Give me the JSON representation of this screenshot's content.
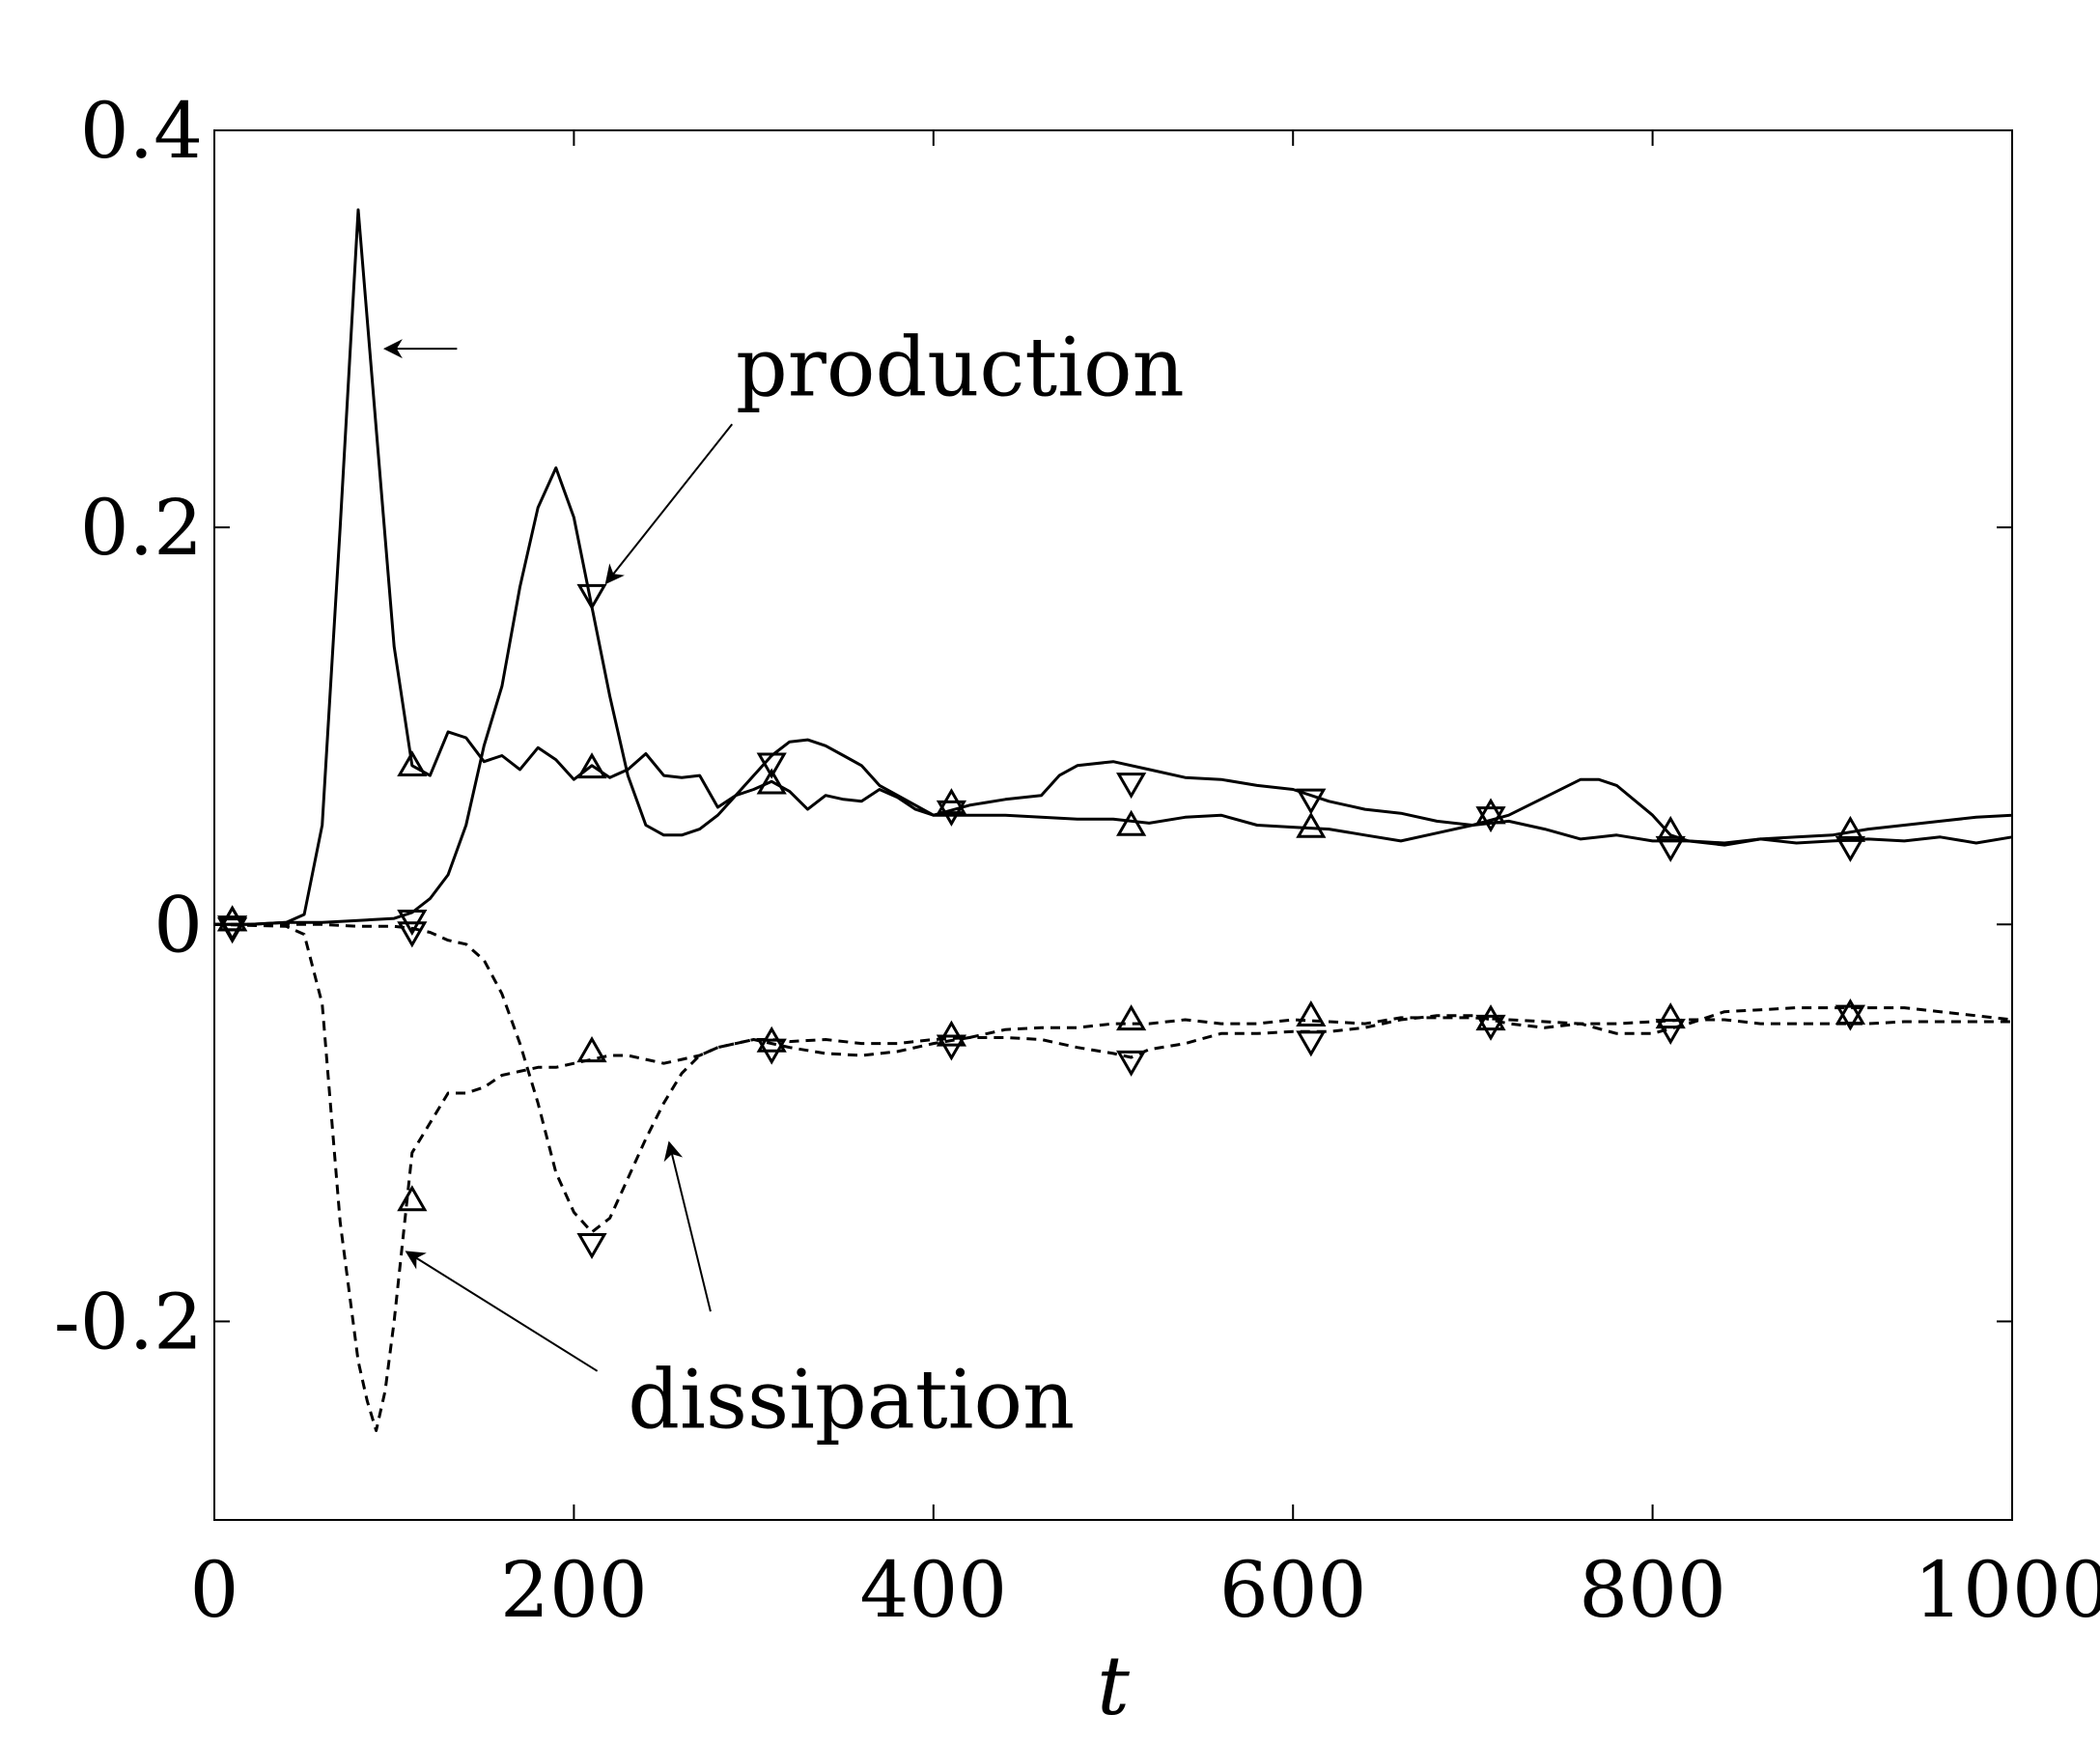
{
  "chart_data": {
    "type": "line",
    "title": "",
    "xlabel": "t",
    "ylabel": "",
    "xlim": [
      0,
      1000
    ],
    "ylim": [
      -0.3,
      0.4
    ],
    "xticks": [
      0,
      200,
      400,
      600,
      800,
      1000
    ],
    "xtick_labels": [
      "0",
      "200",
      "400",
      "600",
      "800",
      "1000"
    ],
    "yticks": [
      -0.2,
      0,
      0.2,
      0.4
    ],
    "ytick_labels": [
      "-0.2",
      "0",
      "0.2",
      "0.4"
    ],
    "grid": false,
    "legend": "none",
    "line_color": "#000000",
    "series": [
      {
        "group": "production",
        "line_style": "solid",
        "marker": "triangle-up",
        "x": [
          0,
          20,
          40,
          50,
          60,
          70,
          80,
          90,
          100,
          110,
          120,
          130,
          140,
          150,
          160,
          170,
          180,
          190,
          200,
          210,
          220,
          230,
          240,
          250,
          260,
          270,
          280,
          290,
          300,
          310,
          320,
          330,
          340,
          350,
          360,
          370,
          380,
          390,
          400,
          420,
          440,
          460,
          480,
          500,
          520,
          540,
          560,
          580,
          600,
          620,
          640,
          660,
          680,
          700,
          720,
          740,
          760,
          780,
          800,
          820,
          840,
          860,
          880,
          900,
          920,
          940,
          960,
          980,
          1000
        ],
        "y": [
          0,
          0,
          0.001,
          0.005,
          0.05,
          0.2,
          0.36,
          0.25,
          0.14,
          0.08,
          0.075,
          0.097,
          0.094,
          0.082,
          0.085,
          0.078,
          0.089,
          0.083,
          0.073,
          0.08,
          0.074,
          0.078,
          0.086,
          0.075,
          0.074,
          0.075,
          0.059,
          0.065,
          0.068,
          0.072,
          0.067,
          0.058,
          0.065,
          0.063,
          0.062,
          0.068,
          0.064,
          0.058,
          0.055,
          0.055,
          0.055,
          0.054,
          0.053,
          0.053,
          0.051,
          0.054,
          0.055,
          0.05,
          0.049,
          0.048,
          0.045,
          0.042,
          0.046,
          0.05,
          0.052,
          0.048,
          0.043,
          0.045,
          0.042,
          0.042,
          0.041,
          0.043,
          0.041,
          0.042,
          0.043,
          0.042,
          0.044,
          0.041,
          0.044
        ],
        "marker_x": [
          10,
          110,
          210,
          310,
          410,
          510,
          610,
          710,
          810,
          910
        ],
        "marker_y": [
          0.001,
          0.079,
          0.078,
          0.07,
          0.06,
          0.049,
          0.048,
          0.055,
          0.046,
          0.046
        ]
      },
      {
        "group": "production",
        "line_style": "solid",
        "marker": "triangle-down",
        "x": [
          0,
          20,
          40,
          60,
          80,
          100,
          110,
          120,
          130,
          140,
          150,
          160,
          170,
          180,
          190,
          200,
          210,
          220,
          230,
          240,
          250,
          260,
          270,
          280,
          290,
          300,
          310,
          320,
          330,
          340,
          350,
          360,
          370,
          380,
          390,
          400,
          420,
          440,
          460,
          470,
          480,
          500,
          520,
          540,
          560,
          580,
          600,
          620,
          640,
          660,
          680,
          700,
          720,
          740,
          760,
          770,
          780,
          800,
          810,
          820,
          840,
          860,
          880,
          900,
          920,
          940,
          960,
          980,
          1000
        ],
        "y": [
          0,
          0,
          0.001,
          0.001,
          0.002,
          0.003,
          0.006,
          0.013,
          0.025,
          0.05,
          0.09,
          0.12,
          0.17,
          0.21,
          0.23,
          0.205,
          0.16,
          0.115,
          0.075,
          0.05,
          0.045,
          0.045,
          0.048,
          0.055,
          0.065,
          0.075,
          0.085,
          0.092,
          0.093,
          0.09,
          0.085,
          0.08,
          0.07,
          0.065,
          0.06,
          0.055,
          0.06,
          0.063,
          0.065,
          0.075,
          0.08,
          0.082,
          0.078,
          0.074,
          0.073,
          0.07,
          0.068,
          0.062,
          0.058,
          0.056,
          0.052,
          0.05,
          0.055,
          0.064,
          0.073,
          0.073,
          0.07,
          0.055,
          0.045,
          0.042,
          0.04,
          0.043,
          0.044,
          0.045,
          0.048,
          0.05,
          0.052,
          0.054,
          0.055
        ],
        "marker_x": [
          10,
          110,
          210,
          310,
          410,
          510,
          610,
          710,
          810,
          910
        ],
        "marker_y": [
          0,
          0.003,
          0.167,
          0.082,
          0.058,
          0.072,
          0.064,
          0.055,
          0.04,
          0.04
        ]
      },
      {
        "group": "dissipation",
        "line_style": "dashed",
        "marker": "triangle-up",
        "x": [
          0,
          40,
          50,
          60,
          70,
          80,
          85,
          90,
          95,
          100,
          110,
          120,
          130,
          140,
          150,
          160,
          170,
          180,
          190,
          200,
          210,
          220,
          230,
          240,
          250,
          260,
          270,
          280,
          290,
          300,
          310,
          320,
          340,
          360,
          380,
          400,
          420,
          440,
          460,
          480,
          500,
          520,
          540,
          560,
          580,
          600,
          620,
          640,
          660,
          680,
          700,
          720,
          740,
          760,
          780,
          800,
          820,
          840,
          860,
          880,
          900,
          920,
          940,
          960,
          980,
          1000
        ],
        "y": [
          0,
          -0.001,
          -0.005,
          -0.04,
          -0.15,
          -0.22,
          -0.24,
          -0.255,
          -0.235,
          -0.2,
          -0.115,
          -0.1,
          -0.085,
          -0.085,
          -0.082,
          -0.076,
          -0.074,
          -0.072,
          -0.072,
          -0.07,
          -0.068,
          -0.066,
          -0.066,
          -0.068,
          -0.07,
          -0.068,
          -0.066,
          -0.062,
          -0.06,
          -0.058,
          -0.058,
          -0.059,
          -0.058,
          -0.06,
          -0.06,
          -0.058,
          -0.057,
          -0.053,
          -0.052,
          -0.052,
          -0.05,
          -0.05,
          -0.048,
          -0.05,
          -0.05,
          -0.048,
          -0.049,
          -0.05,
          -0.047,
          -0.047,
          -0.047,
          -0.048,
          -0.049,
          -0.05,
          -0.05,
          -0.049,
          -0.048,
          -0.048,
          -0.05,
          -0.05,
          -0.05,
          -0.05,
          -0.049,
          -0.049,
          -0.049,
          -0.049
        ],
        "marker_x": [
          10,
          110,
          210,
          310,
          410,
          510,
          610,
          710,
          810,
          910
        ],
        "marker_y": [
          0.001,
          -0.14,
          -0.065,
          -0.06,
          -0.057,
          -0.049,
          -0.047,
          -0.049,
          -0.048,
          -0.046
        ]
      },
      {
        "group": "dissipation",
        "line_style": "dashed",
        "marker": "triangle-down",
        "x": [
          0,
          40,
          60,
          80,
          100,
          110,
          120,
          130,
          140,
          150,
          160,
          170,
          180,
          190,
          200,
          210,
          220,
          230,
          240,
          250,
          260,
          270,
          280,
          290,
          300,
          310,
          320,
          340,
          360,
          380,
          400,
          420,
          440,
          460,
          480,
          500,
          510,
          520,
          540,
          560,
          580,
          600,
          620,
          640,
          660,
          680,
          700,
          720,
          740,
          760,
          780,
          800,
          820,
          840,
          860,
          880,
          900,
          920,
          940,
          960,
          980,
          1000
        ],
        "y": [
          0,
          0,
          0,
          -0.001,
          -0.001,
          -0.002,
          -0.004,
          -0.008,
          -0.01,
          -0.018,
          -0.035,
          -0.06,
          -0.09,
          -0.125,
          -0.145,
          -0.155,
          -0.148,
          -0.128,
          -0.108,
          -0.09,
          -0.075,
          -0.066,
          -0.062,
          -0.06,
          -0.058,
          -0.06,
          -0.062,
          -0.065,
          -0.066,
          -0.064,
          -0.06,
          -0.057,
          -0.057,
          -0.058,
          -0.062,
          -0.065,
          -0.067,
          -0.063,
          -0.06,
          -0.055,
          -0.055,
          -0.054,
          -0.054,
          -0.052,
          -0.048,
          -0.046,
          -0.046,
          -0.05,
          -0.052,
          -0.05,
          -0.055,
          -0.055,
          -0.05,
          -0.044,
          -0.043,
          -0.042,
          -0.042,
          -0.042,
          -0.042,
          -0.044,
          -0.046,
          -0.048
        ],
        "marker_x": [
          10,
          110,
          210,
          310,
          410,
          510,
          610,
          710,
          810,
          910
        ],
        "marker_y": [
          -0.001,
          -0.003,
          -0.16,
          -0.062,
          -0.06,
          -0.068,
          -0.058,
          -0.05,
          -0.052,
          -0.045
        ]
      }
    ],
    "annotations": [
      {
        "text": "production",
        "label_at": [
          290,
          0.28
        ],
        "arrows": [
          {
            "from": [
              135,
              0.29
            ],
            "to": [
              95,
              0.29
            ]
          },
          {
            "from": [
              288,
              0.252
            ],
            "to": [
              218,
              0.172
            ]
          }
        ]
      },
      {
        "text": "dissipation",
        "label_at": [
          230,
          -0.24
        ],
        "arrows": [
          {
            "from": [
              213,
              -0.225
            ],
            "to": [
              107,
              -0.165
            ]
          },
          {
            "from": [
              276,
              -0.195
            ],
            "to": [
              253,
              -0.11
            ]
          }
        ]
      }
    ]
  }
}
